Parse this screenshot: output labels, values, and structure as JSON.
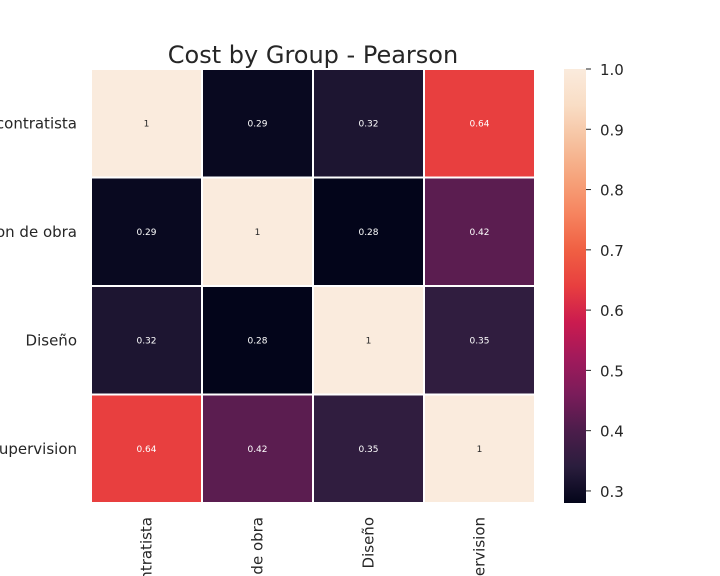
{
  "chart_data": {
    "type": "heatmap",
    "title": "Cost by Group - Pearson",
    "rows": [
      "Subcontratista",
      "Direccion de obra",
      "Diseño",
      "Supervision"
    ],
    "cols": [
      "Subcontratista",
      "Direccion de obra",
      "Diseño",
      "Supervision"
    ],
    "row_labels_visible": [
      "contratista",
      "on de obra",
      "Diseño",
      "Supervision"
    ],
    "col_labels_visible": [
      "ntratista",
      "de obra",
      "Diseño",
      "ervision"
    ],
    "values": [
      [
        1,
        0.29,
        0.32,
        0.64
      ],
      [
        0.29,
        1,
        0.28,
        0.42
      ],
      [
        0.32,
        0.28,
        1,
        0.35
      ],
      [
        0.64,
        0.42,
        0.35,
        1
      ]
    ],
    "cell_text": [
      [
        "1",
        "0.29",
        "0.32",
        "0.64"
      ],
      [
        "0.29",
        "1",
        "0.28",
        "0.42"
      ],
      [
        "0.32",
        "0.28",
        "1",
        "0.35"
      ],
      [
        "0.64",
        "0.42",
        "0.35",
        "1"
      ]
    ],
    "vmin": 0.28,
    "vmax": 1.0,
    "colorbar_ticks": [
      "0.3",
      "0.4",
      "0.5",
      "0.6",
      "0.7",
      "0.8",
      "0.9",
      "1.0"
    ],
    "colormap": "rocket",
    "colormap_stops": [
      "#03051a",
      "#2a1d3d",
      "#4c1d4b",
      "#7a1c5a",
      "#a11a5b",
      "#cb1b4f",
      "#e83f3f",
      "#f06043",
      "#f6845f",
      "#f6a47c",
      "#f6c19f",
      "#f9ddc5",
      "#faebdd"
    ],
    "cell_border_color": "#ffffff",
    "text_color_dark_bg": "#ffffff",
    "text_color_light_bg": "#262626",
    "xlabel": "",
    "ylabel": ""
  }
}
